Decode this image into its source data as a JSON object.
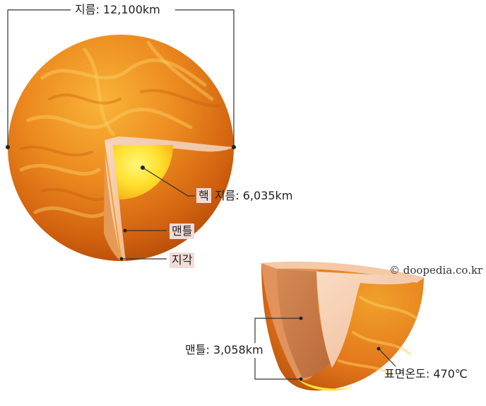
{
  "labels": {
    "diameter": "지름: 12,100km",
    "core_word": "핵",
    "core_diameter": "지름: 6,035km",
    "mantle": "맨틀",
    "crust": "지각",
    "mantle_thickness": "맨틀: 3,058km",
    "surface_temp": "표면온도: 470℃"
  },
  "credit": "© doopedia.co.kr",
  "colors": {
    "surface_orange": "#e9821c",
    "core_yellow": "#ffe23a",
    "mantle_peach": "#f4c9a8",
    "leader_line": "#333333",
    "label_highlight": "#f1dcd8"
  }
}
